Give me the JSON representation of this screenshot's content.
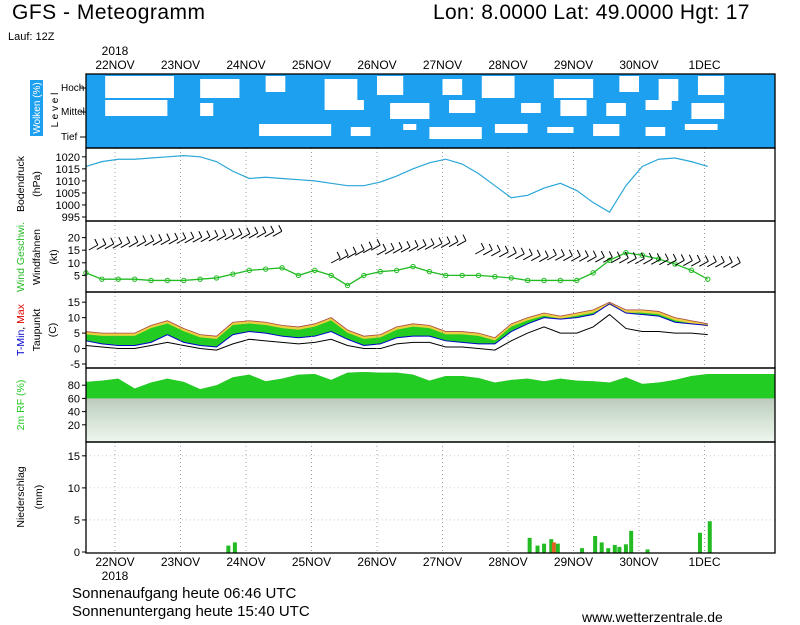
{
  "header": {
    "title": "GFS - Meteogramm",
    "coords": "Lon: 8.0000  Lat: 49.0000  Hgt: 17",
    "run": "Lauf: 12Z"
  },
  "footer": {
    "sunrise": "Sonnenaufgang heute 06:46 UTC",
    "sunset": "Sonnenuntergang heute 15:40 UTC",
    "credit": "www.wetterzentrale.de"
  },
  "colors": {
    "cloud_blue": "#1ea0f0",
    "pressure_line": "#2aa7d8",
    "wind_green": "#22bb22",
    "dew_green": "#22cc22",
    "max_yellow": "#e8d040",
    "tmin_blue": "#0000cc",
    "tmax_red": "#dd0000",
    "rf_green": "#22cc22",
    "precip_green": "#22bb22",
    "precip_orange": "#e06020"
  },
  "chart_data": {
    "type": "meteogram",
    "x_categories": [
      "22NOV",
      "23NOV",
      "24NOV",
      "25NOV",
      "26NOV",
      "27NOV",
      "28NOV",
      "29NOV",
      "30NOV",
      "1DEC"
    ],
    "year": "2018",
    "panels": {
      "clouds": {
        "ylabel": "Wolken (%)",
        "ylabel_sub": "L e v e l",
        "levels": [
          "Hoch",
          "Mittel",
          "Tief"
        ]
      },
      "pressure": {
        "ylabel": "Bodendruck",
        "unit": "(hPa)",
        "ylim": [
          995,
          1022
        ],
        "ticks": [
          995,
          1000,
          1005,
          1010,
          1015,
          1020
        ],
        "x": [
          0,
          0.25,
          0.5,
          0.75,
          1,
          1.25,
          1.5,
          1.75,
          2,
          2.25,
          2.5,
          2.75,
          3,
          3.25,
          3.5,
          3.75,
          4,
          4.25,
          4.5,
          4.75,
          5,
          5.25,
          5.5,
          5.75,
          6,
          6.25,
          6.5,
          6.75,
          7,
          7.25,
          7.5,
          7.75,
          8,
          8.25,
          8.5,
          8.75,
          9,
          9.25,
          9.5
        ],
        "values": [
          1016,
          1018,
          1019,
          1019,
          1019.5,
          1020,
          1020.5,
          1020,
          1018,
          1014,
          1011,
          1011.5,
          1011,
          1010.5,
          1010,
          1009,
          1008,
          1008,
          1009.5,
          1012,
          1015,
          1017.5,
          1019,
          1017,
          1013,
          1008,
          1003,
          1004,
          1007,
          1009,
          1006,
          1001,
          997,
          1008,
          1016,
          1019,
          1019.5,
          1018,
          1016
        ]
      },
      "wind": {
        "ylabel": "Wind Geschwi.",
        "ylabel2": "Windfahnen",
        "unit": "(kt)",
        "ylim": [
          0,
          25
        ],
        "ticks": [
          5,
          10,
          15,
          20
        ],
        "x": [
          0,
          0.25,
          0.5,
          0.75,
          1,
          1.25,
          1.5,
          1.75,
          2,
          2.25,
          2.5,
          2.75,
          3,
          3.25,
          3.5,
          3.75,
          4,
          4.25,
          4.5,
          4.75,
          5,
          5.25,
          5.5,
          5.75,
          6,
          6.25,
          6.5,
          6.75,
          7,
          7.25,
          7.5,
          7.75,
          8,
          8.25,
          8.5,
          8.75,
          9,
          9.25,
          9.5
        ],
        "values": [
          6,
          3.5,
          3.5,
          3.5,
          3,
          3,
          3,
          3.5,
          4,
          5.5,
          7,
          7.5,
          8,
          5,
          7,
          5,
          1,
          5,
          6.5,
          7,
          8.5,
          6.5,
          5,
          5,
          5,
          4.5,
          4,
          3,
          3,
          3,
          3,
          6,
          11,
          14,
          13,
          11.5,
          9.5,
          7,
          3.5
        ]
      },
      "temperature": {
        "ylabel_parts": [
          "T-Min",
          ", ",
          "Max"
        ],
        "ylabel2": "Taupunkt",
        "unit": "(C)",
        "ylim": [
          -5,
          17
        ],
        "ticks": [
          -5,
          0,
          5,
          10,
          15
        ],
        "x": [
          0,
          0.25,
          0.5,
          0.75,
          1,
          1.25,
          1.5,
          1.75,
          2,
          2.25,
          2.5,
          2.75,
          3,
          3.25,
          3.5,
          3.75,
          4,
          4.25,
          4.5,
          4.75,
          5,
          5.25,
          5.5,
          5.75,
          6,
          6.25,
          6.5,
          6.75,
          7,
          7.25,
          7.5,
          7.75,
          8,
          8.25,
          8.5,
          8.75,
          9,
          9.25,
          9.5
        ],
        "t_max": [
          5.5,
          5,
          5,
          5,
          7.5,
          9,
          6.5,
          4.5,
          4,
          8.5,
          9,
          8.5,
          7.5,
          7,
          8,
          10,
          6,
          4,
          4.5,
          7,
          8,
          7.5,
          5.5,
          5.5,
          5,
          3.5,
          8,
          10,
          11.5,
          10.5,
          11.5,
          12.5,
          15,
          12.5,
          12.5,
          12,
          10,
          9,
          8
        ],
        "t_min": [
          2.5,
          1.5,
          1,
          1,
          2,
          4.5,
          2,
          1,
          0.5,
          4.5,
          5.5,
          5,
          4,
          3.5,
          4,
          5.5,
          3,
          1,
          1.5,
          3.5,
          4,
          4,
          2.5,
          2,
          1.5,
          1.5,
          5.5,
          8,
          10,
          9.5,
          10,
          11,
          14.5,
          11.5,
          11,
          10.5,
          8.5,
          8,
          7.5
        ],
        "dewpoint": [
          1,
          0.5,
          0,
          0,
          1,
          2,
          1,
          0,
          -0.5,
          1.5,
          3,
          2.5,
          2,
          1.5,
          2,
          3,
          1,
          0,
          0,
          1.5,
          2,
          2,
          0.5,
          0.5,
          0,
          -0.5,
          2.5,
          5,
          7,
          5,
          5,
          7,
          11,
          6.5,
          5.5,
          5.5,
          5,
          5,
          4.5
        ]
      },
      "humidity": {
        "ylabel": "2m RF (%)",
        "ylim": [
          0,
          100
        ],
        "ticks": [
          20,
          40,
          60,
          80
        ],
        "x": [
          0,
          0.25,
          0.5,
          0.75,
          1,
          1.25,
          1.5,
          1.75,
          2,
          2.25,
          2.5,
          2.75,
          3,
          3.25,
          3.5,
          3.75,
          4,
          4.25,
          4.5,
          4.75,
          5,
          5.25,
          5.5,
          5.75,
          6,
          6.25,
          6.5,
          6.75,
          7,
          7.25,
          7.5,
          7.75,
          8,
          8.25,
          8.5,
          8.75,
          9,
          9.25,
          9.5
        ],
        "values": [
          85,
          87,
          90,
          75,
          84,
          90,
          85,
          74,
          80,
          92,
          96,
          86,
          90,
          96,
          97,
          88,
          99,
          100,
          99,
          99,
          96,
          87,
          94,
          94,
          91,
          84,
          88,
          90,
          86,
          90,
          87,
          86,
          84,
          92,
          82,
          84,
          88,
          94,
          97
        ]
      },
      "precipitation": {
        "ylabel": "Niederschlag",
        "unit": "(mm)",
        "ylim": [
          0,
          17
        ],
        "ticks": [
          0,
          5,
          10,
          15
        ],
        "bars": [
          {
            "x": 2.15,
            "value": 1,
            "color": "green"
          },
          {
            "x": 2.25,
            "value": 1.5,
            "color": "green"
          },
          {
            "x": 6.75,
            "value": 2.2,
            "color": "green"
          },
          {
            "x": 6.87,
            "value": 1,
            "color": "green"
          },
          {
            "x": 6.97,
            "value": 1.3,
            "color": "green"
          },
          {
            "x": 7.08,
            "value": 2,
            "color": "green"
          },
          {
            "x": 7.12,
            "value": 1.5,
            "color": "orange"
          },
          {
            "x": 7.18,
            "value": 1.3,
            "color": "green"
          },
          {
            "x": 7.55,
            "value": 0.6,
            "color": "green"
          },
          {
            "x": 7.75,
            "value": 2.5,
            "color": "green"
          },
          {
            "x": 7.85,
            "value": 1.5,
            "color": "green"
          },
          {
            "x": 7.95,
            "value": 0.6,
            "color": "green"
          },
          {
            "x": 8.05,
            "value": 1.1,
            "color": "green"
          },
          {
            "x": 8.12,
            "value": 0.8,
            "color": "green"
          },
          {
            "x": 8.22,
            "value": 1.2,
            "color": "green"
          },
          {
            "x": 8.3,
            "value": 3.3,
            "color": "green"
          },
          {
            "x": 8.55,
            "value": 0.4,
            "color": "green"
          },
          {
            "x": 9.35,
            "value": 3,
            "color": "green"
          },
          {
            "x": 9.5,
            "value": 4.8,
            "color": "green"
          }
        ]
      }
    }
  }
}
